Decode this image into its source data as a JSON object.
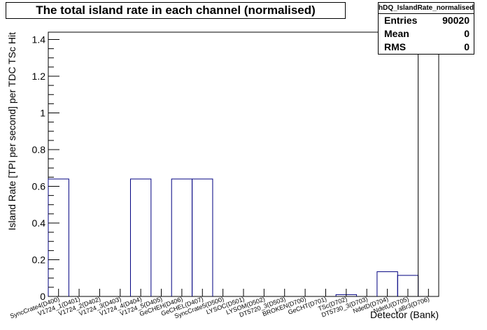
{
  "chart_data": {
    "type": "histogram",
    "title": "The total island rate in each channel (normalised)",
    "xlabel": "Detector (Bank)",
    "ylabel": "Island Rate [TPI per second] per TDC TSc Hit",
    "ylim": [
      0,
      1.44
    ],
    "yticks": [
      0,
      0.2,
      0.4,
      0.6,
      0.8,
      1,
      1.2,
      1.4
    ],
    "ytick_labels": [
      "0",
      "0.2",
      "0.4",
      "0.6",
      "0.8",
      "1",
      "1.2",
      "1.4"
    ],
    "categories": [
      "SyncCrate4(D400)",
      "V1724_1(D401)",
      "V1724_2(D402)",
      "V1724_3(D403)",
      "V1724_4(D404)",
      "V1724_5(D405)",
      "GeCHEH(D406)",
      "GeCHEL(D407)",
      "SyncCrate5(D500)",
      "LYSOC(D501)",
      "LYSOM(D502)",
      "DT5720_3(D503)",
      "BROKEN(D700)",
      "GeCHT(D701)",
      "TSc(D702)",
      "DT5730_3(D703)",
      "NdetD(D704)",
      "NdetU(D705)",
      "LaBr3(D706)"
    ],
    "values": [
      0.64,
      0,
      0,
      0,
      0.64,
      0,
      0.64,
      0.64,
      0,
      0,
      0,
      0,
      0,
      0,
      0.01,
      0,
      0.135,
      0.115,
      1.47
    ],
    "grid": false,
    "line_color": "#000080"
  },
  "stats": {
    "name": "hDQ_IslandRate_normalised",
    "rows": [
      {
        "label": "Entries",
        "value": "90020"
      },
      {
        "label": "Mean",
        "value": "0"
      },
      {
        "label": "RMS",
        "value": "0"
      }
    ]
  }
}
